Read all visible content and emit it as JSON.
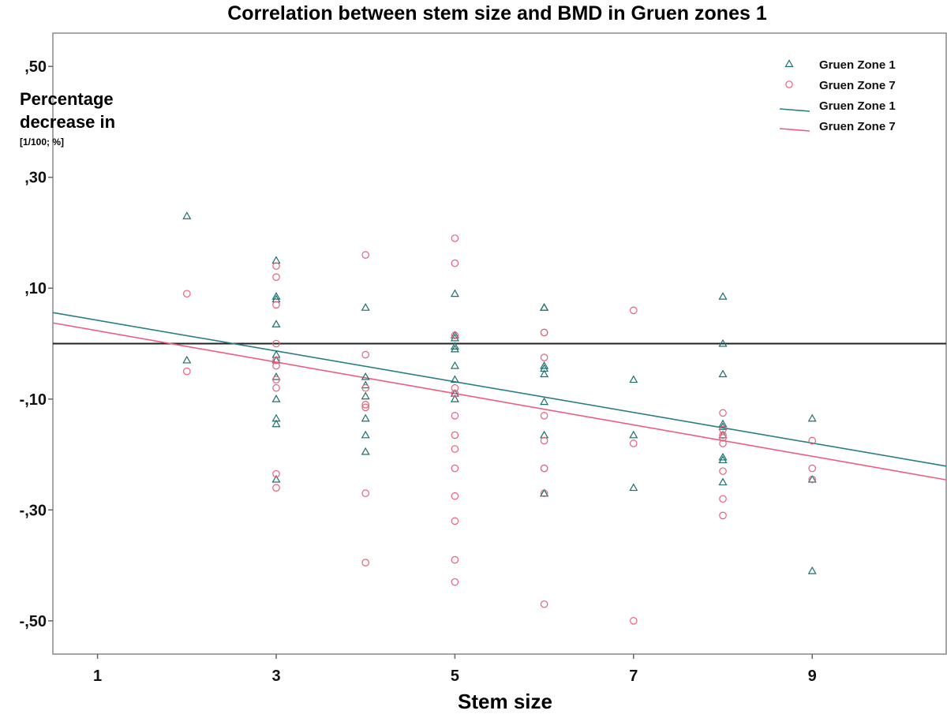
{
  "chart_data": {
    "type": "scatter",
    "title": "Correlation between stem size and BMD in Gruen zones 1",
    "xlabel": "Stem size",
    "ylabel_lines": [
      "Percentage",
      "decrease in"
    ],
    "ylabel_unit": "[1/100; %]",
    "xlim": [
      0.5,
      10.5
    ],
    "ylim": [
      -0.56,
      0.56
    ],
    "x_ticks": [
      1,
      3,
      5,
      7,
      9
    ],
    "x_tick_labels": [
      "1",
      "3",
      "5",
      "7",
      "9"
    ],
    "y_ticks": [
      0.5,
      0.3,
      0.1,
      -0.1,
      -0.3,
      -0.5
    ],
    "y_tick_labels": [
      ",50",
      ",30",
      ",10",
      "-,10",
      "-,30",
      "-,50"
    ],
    "reference_line_y": 0,
    "grid": false,
    "legend_position": "top-right",
    "colors": {
      "zone1": "#1e6f6f",
      "zone7": "#e8607a",
      "zone1_line": "#2a7d84",
      "zone7_line": "#ee5c82",
      "reference": "#222222"
    },
    "legend": [
      {
        "label": "Gruen Zone 1",
        "kind": "triangle",
        "series": "zone1"
      },
      {
        "label": "Gruen Zone 7",
        "kind": "circle",
        "series": "zone7"
      },
      {
        "label": "Gruen Zone 1",
        "kind": "line",
        "series": "zone1_line"
      },
      {
        "label": "Gruen Zone 7",
        "kind": "line",
        "series": "zone7_line"
      }
    ],
    "series": [
      {
        "name": "Gruen Zone 1",
        "marker": "triangle",
        "color_key": "zone1",
        "points": [
          [
            2,
            0.23
          ],
          [
            2,
            -0.03
          ],
          [
            3,
            0.15
          ],
          [
            3,
            0.085
          ],
          [
            3,
            0.08
          ],
          [
            3,
            0.035
          ],
          [
            3,
            -0.02
          ],
          [
            3,
            -0.03
          ],
          [
            3,
            -0.06
          ],
          [
            3,
            -0.1
          ],
          [
            3,
            -0.135
          ],
          [
            3,
            -0.145
          ],
          [
            3,
            -0.245
          ],
          [
            4,
            0.065
          ],
          [
            4,
            -0.06
          ],
          [
            4,
            -0.075
          ],
          [
            4,
            -0.095
          ],
          [
            4,
            -0.135
          ],
          [
            4,
            -0.165
          ],
          [
            4,
            -0.195
          ],
          [
            5,
            0.09
          ],
          [
            5,
            0.015
          ],
          [
            5,
            0.01
          ],
          [
            5,
            -0.005
          ],
          [
            5,
            -0.01
          ],
          [
            5,
            -0.04
          ],
          [
            5,
            -0.065
          ],
          [
            5,
            -0.09
          ],
          [
            5,
            -0.1
          ],
          [
            6,
            0.065
          ],
          [
            6,
            0.065
          ],
          [
            6,
            -0.04
          ],
          [
            6,
            -0.045
          ],
          [
            6,
            -0.055
          ],
          [
            6,
            -0.105
          ],
          [
            6,
            -0.165
          ],
          [
            6,
            -0.27
          ],
          [
            6,
            -0.27
          ],
          [
            7,
            -0.065
          ],
          [
            7,
            -0.165
          ],
          [
            7,
            -0.26
          ],
          [
            8,
            0.085
          ],
          [
            8,
            0.0
          ],
          [
            8,
            -0.055
          ],
          [
            8,
            -0.145
          ],
          [
            8,
            -0.15
          ],
          [
            8,
            -0.165
          ],
          [
            8,
            -0.205
          ],
          [
            8,
            -0.21
          ],
          [
            8,
            -0.25
          ],
          [
            9,
            -0.135
          ],
          [
            9,
            -0.245
          ],
          [
            9,
            -0.41
          ]
        ],
        "fit_line": {
          "slope": -0.0277,
          "intercept": 0.0698
        }
      },
      {
        "name": "Gruen Zone 7",
        "marker": "circle",
        "color_key": "zone7",
        "points": [
          [
            2,
            0.09
          ],
          [
            2,
            -0.05
          ],
          [
            3,
            0.14
          ],
          [
            3,
            0.12
          ],
          [
            3,
            0.07
          ],
          [
            3,
            0.0
          ],
          [
            3,
            -0.03
          ],
          [
            3,
            -0.04
          ],
          [
            3,
            -0.065
          ],
          [
            3,
            -0.08
          ],
          [
            3,
            -0.235
          ],
          [
            3,
            -0.26
          ],
          [
            4,
            0.16
          ],
          [
            4,
            -0.02
          ],
          [
            4,
            -0.08
          ],
          [
            4,
            -0.11
          ],
          [
            4,
            -0.115
          ],
          [
            4,
            -0.27
          ],
          [
            4,
            -0.395
          ],
          [
            5,
            0.19
          ],
          [
            5,
            0.145
          ],
          [
            5,
            0.015
          ],
          [
            5,
            -0.08
          ],
          [
            5,
            -0.09
          ],
          [
            5,
            -0.13
          ],
          [
            5,
            -0.165
          ],
          [
            5,
            -0.19
          ],
          [
            5,
            -0.225
          ],
          [
            5,
            -0.275
          ],
          [
            5,
            -0.32
          ],
          [
            5,
            -0.39
          ],
          [
            5,
            -0.43
          ],
          [
            6,
            0.02
          ],
          [
            6,
            0.02
          ],
          [
            6,
            -0.025
          ],
          [
            6,
            -0.13
          ],
          [
            6,
            -0.175
          ],
          [
            6,
            -0.225
          ],
          [
            6,
            -0.225
          ],
          [
            6,
            -0.27
          ],
          [
            6,
            -0.47
          ],
          [
            7,
            0.06
          ],
          [
            7,
            -0.18
          ],
          [
            7,
            -0.5
          ],
          [
            8,
            -0.125
          ],
          [
            8,
            -0.155
          ],
          [
            8,
            -0.165
          ],
          [
            8,
            -0.17
          ],
          [
            8,
            -0.18
          ],
          [
            8,
            -0.23
          ],
          [
            8,
            -0.28
          ],
          [
            8,
            -0.31
          ],
          [
            9,
            -0.175
          ],
          [
            9,
            -0.225
          ],
          [
            9,
            -0.245
          ]
        ],
        "fit_line": {
          "slope": -0.0283,
          "intercept": 0.0515
        }
      }
    ]
  }
}
